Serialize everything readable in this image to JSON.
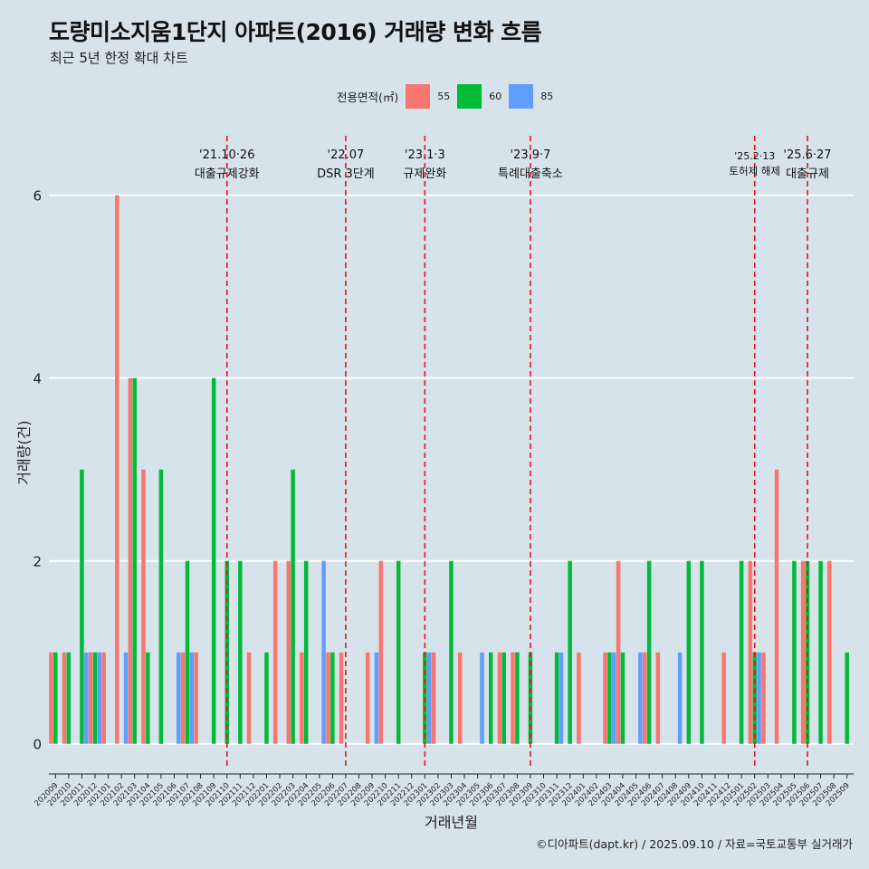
{
  "title": "도량미소지움1단지 아파트(2016) 거래량 변화 흐름",
  "subtitle": "최근 5년 한정 확대 차트",
  "legend": {
    "title": "전용면적(㎡)",
    "items": [
      {
        "label": "55",
        "color": "#f8766d"
      },
      {
        "label": "60",
        "color": "#00ba38"
      },
      {
        "label": "85",
        "color": "#619cff"
      }
    ]
  },
  "caption": "©디아파트(dapt.kr) / 2025.09.10 / 자료=국토교통부 실거래가",
  "chart_data": {
    "type": "bar",
    "xlabel": "거래년월",
    "ylabel": "거래량(건)",
    "ylim": [
      -0.28,
      6.65
    ],
    "yticks": [
      0,
      2,
      4,
      6
    ],
    "categories": [
      "202009",
      "202010",
      "202011",
      "202012",
      "202101",
      "202102",
      "202103",
      "202104",
      "202105",
      "202106",
      "202107",
      "202108",
      "202109",
      "202110",
      "202111",
      "202112",
      "202201",
      "202202",
      "202203",
      "202204",
      "202205",
      "202206",
      "202207",
      "202208",
      "202209",
      "202210",
      "202211",
      "202212",
      "202301",
      "202302",
      "202303",
      "202304",
      "202305",
      "202306",
      "202307",
      "202308",
      "202309",
      "202310",
      "202311",
      "202312",
      "202401",
      "202402",
      "202403",
      "202404",
      "202405",
      "202406",
      "202407",
      "202408",
      "202409",
      "202410",
      "202411",
      "202412",
      "202501",
      "202502",
      "202503",
      "202504",
      "202505",
      "202506",
      "202507",
      "202508",
      "202509"
    ],
    "series": [
      {
        "name": "55",
        "color": "#f8766d",
        "values": [
          1,
          1,
          0,
          1,
          1,
          6,
          4,
          3,
          0,
          0,
          1,
          1,
          0,
          0,
          0,
          1,
          0,
          2,
          2,
          1,
          0,
          1,
          1,
          0,
          1,
          2,
          0,
          0,
          0,
          1,
          0,
          1,
          0,
          0,
          1,
          1,
          0,
          0,
          0,
          0,
          1,
          0,
          1,
          2,
          0,
          1,
          1,
          0,
          0,
          0,
          0,
          1,
          0,
          2,
          1,
          3,
          0,
          2,
          0,
          2,
          0
        ]
      },
      {
        "name": "60",
        "color": "#00ba38",
        "values": [
          1,
          1,
          3,
          1,
          0,
          0,
          4,
          1,
          3,
          0,
          2,
          0,
          4,
          2,
          2,
          0,
          1,
          0,
          3,
          2,
          0,
          1,
          0,
          0,
          0,
          0,
          2,
          0,
          1,
          0,
          2,
          0,
          0,
          1,
          1,
          1,
          1,
          0,
          1,
          2,
          0,
          0,
          1,
          1,
          0,
          2,
          0,
          0,
          2,
          2,
          0,
          0,
          2,
          1,
          0,
          0,
          2,
          2,
          2,
          0,
          1
        ]
      },
      {
        "name": "85",
        "color": "#619cff",
        "values": [
          0,
          0,
          1,
          1,
          0,
          1,
          0,
          0,
          0,
          1,
          1,
          0,
          0,
          0,
          0,
          0,
          0,
          0,
          0,
          0,
          2,
          0,
          0,
          0,
          1,
          0,
          0,
          0,
          1,
          0,
          0,
          0,
          1,
          0,
          0,
          0,
          0,
          0,
          1,
          0,
          0,
          0,
          1,
          0,
          1,
          0,
          0,
          1,
          0,
          0,
          0,
          0,
          0,
          1,
          0,
          0,
          0,
          0,
          0,
          0,
          0
        ]
      }
    ],
    "events": [
      {
        "at": "202110",
        "date": "'21.10·26",
        "label": "대출규제강화"
      },
      {
        "at": "202207",
        "date": "'22.07",
        "label": "DSR 3단계"
      },
      {
        "at": "202301",
        "date": "'23.1·3",
        "label": "규제완화"
      },
      {
        "at": "202309",
        "date": "'23.9·7",
        "label": "특례대출축소"
      },
      {
        "at": "202502",
        "date": "'25.2·13",
        "label": "토허제 해제"
      },
      {
        "at": "202506",
        "date": "'25.6·27",
        "label": "대출규제"
      }
    ],
    "grid": true,
    "legend_position": "top"
  }
}
